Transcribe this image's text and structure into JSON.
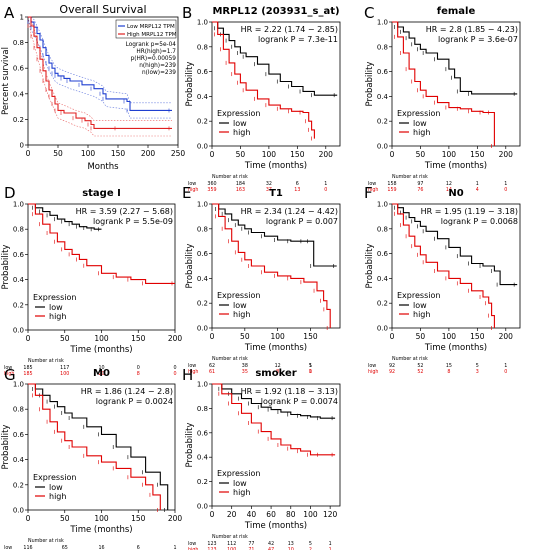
{
  "chart_data": [
    {
      "type": "line",
      "letter": "A",
      "style": "gepia",
      "title": "Overall Survival",
      "xlabel": "Months",
      "ylabel": "Percent survival",
      "xlim": [
        0,
        250
      ],
      "ylim": [
        0,
        1.0
      ],
      "xticks": [
        0,
        50,
        100,
        150,
        200,
        250
      ],
      "yticks": [
        0.0,
        0.2,
        0.4,
        0.6,
        0.8,
        1.0
      ],
      "stats": [
        "Logrank p=5e-04",
        "HR(high)=1.7",
        "p(HR)=0.00059",
        "n(high)=239",
        "n(low)=239"
      ],
      "legend": [
        "Low MRPL12 TPM",
        "High MRPL12 TPM"
      ],
      "series": [
        {
          "name": "Low MRPL12 TPM",
          "color": "#1f3fd0",
          "x": [
            0,
            5,
            10,
            15,
            20,
            25,
            30,
            35,
            40,
            45,
            50,
            60,
            70,
            90,
            110,
            125,
            130,
            165,
            170,
            240
          ],
          "y": [
            1.0,
            0.96,
            0.92,
            0.87,
            0.82,
            0.76,
            0.7,
            0.64,
            0.6,
            0.56,
            0.54,
            0.52,
            0.5,
            0.47,
            0.44,
            0.4,
            0.36,
            0.34,
            0.27,
            0.27
          ]
        },
        {
          "name": "High MRPL12 TPM",
          "color": "#e02020",
          "x": [
            0,
            5,
            10,
            15,
            20,
            25,
            30,
            35,
            40,
            45,
            50,
            60,
            80,
            95,
            105,
            110,
            150,
            240
          ],
          "y": [
            1.0,
            0.93,
            0.85,
            0.76,
            0.67,
            0.58,
            0.5,
            0.43,
            0.38,
            0.32,
            0.27,
            0.25,
            0.21,
            0.19,
            0.16,
            0.13,
            0.13,
            0.13
          ]
        }
      ]
    },
    {
      "type": "line",
      "letter": "B",
      "style": "kmplot",
      "title": "MRPL12 (203931_s_at)",
      "xlabel": "Time (months)",
      "ylabel": "Probability",
      "xlim": [
        0,
        225
      ],
      "ylim": [
        0,
        1.0
      ],
      "xticks": [
        0,
        50,
        100,
        150,
        200
      ],
      "yticks": [
        0.0,
        0.2,
        0.4,
        0.6,
        0.8,
        1.0
      ],
      "hr": "HR = 2.22 (1.74 − 2.85)",
      "logrank": "logrank P = 7.3e-11",
      "legend_title": "Expression",
      "risk_title": "Number at risk",
      "risk": [
        {
          "name": "low",
          "values": [
            "360",
            "184",
            "32",
            "6",
            "1"
          ]
        },
        {
          "name": "high",
          "values": [
            "359",
            "163",
            "37",
            "13",
            "0"
          ]
        }
      ],
      "series": [
        {
          "name": "low",
          "color": "#000000",
          "x": [
            0,
            10,
            20,
            30,
            40,
            50,
            60,
            80,
            100,
            120,
            140,
            160,
            180,
            220
          ],
          "y": [
            1.0,
            0.95,
            0.9,
            0.85,
            0.8,
            0.75,
            0.72,
            0.66,
            0.58,
            0.52,
            0.48,
            0.44,
            0.41,
            0.41
          ]
        },
        {
          "name": "high",
          "color": "#e00000",
          "x": [
            0,
            10,
            20,
            30,
            40,
            50,
            60,
            80,
            100,
            120,
            140,
            160,
            170,
            175,
            180
          ],
          "y": [
            1.0,
            0.9,
            0.78,
            0.67,
            0.58,
            0.51,
            0.45,
            0.38,
            0.33,
            0.3,
            0.28,
            0.27,
            0.2,
            0.13,
            0.06
          ]
        }
      ]
    },
    {
      "type": "line",
      "letter": "C",
      "style": "kmplot",
      "title": "female",
      "xlabel": "Time (months)",
      "ylabel": "Probability",
      "xlim": [
        0,
        225
      ],
      "ylim": [
        0,
        1.0
      ],
      "xticks": [
        0,
        50,
        100,
        150,
        200
      ],
      "yticks": [
        0.0,
        0.2,
        0.4,
        0.6,
        0.8,
        1.0
      ],
      "hr": "HR = 2.8 (1.85 − 4.23)",
      "logrank": "logrank P = 3.6e-07",
      "legend_title": "Expression",
      "risk_title": "Number at risk",
      "risk": [
        {
          "name": "low",
          "values": [
            "158",
            "97",
            "12",
            "1",
            "1"
          ]
        },
        {
          "name": "high",
          "values": [
            "159",
            "76",
            "14",
            "4",
            "0"
          ]
        }
      ],
      "series": [
        {
          "name": "low",
          "color": "#000000",
          "x": [
            0,
            10,
            20,
            30,
            40,
            50,
            60,
            80,
            100,
            110,
            120,
            140,
            220
          ],
          "y": [
            1.0,
            0.96,
            0.92,
            0.87,
            0.82,
            0.78,
            0.75,
            0.7,
            0.62,
            0.55,
            0.44,
            0.42,
            0.42
          ]
        },
        {
          "name": "high",
          "color": "#e00000",
          "x": [
            0,
            10,
            20,
            30,
            40,
            50,
            60,
            80,
            100,
            120,
            140,
            160,
            175,
            180
          ],
          "y": [
            1.0,
            0.88,
            0.75,
            0.62,
            0.52,
            0.45,
            0.4,
            0.35,
            0.31,
            0.3,
            0.28,
            0.27,
            0.27,
            0.0
          ]
        }
      ]
    },
    {
      "type": "line",
      "letter": "D",
      "style": "kmplot",
      "title": "stage I",
      "xlabel": "Time (months)",
      "ylabel": "Probability",
      "xlim": [
        0,
        200
      ],
      "ylim": [
        0,
        1.0
      ],
      "xticks": [
        0,
        50,
        100,
        150,
        200
      ],
      "yticks": [
        0.0,
        0.2,
        0.4,
        0.6,
        0.8,
        1.0
      ],
      "hr": "HR = 3.59 (2.27 − 5.68)",
      "logrank": "logrank P = 5.5e-09",
      "legend_title": "Expression",
      "risk_title": "Number at risk",
      "risk": [
        {
          "name": "low",
          "values": [
            "185",
            "117",
            "10",
            "0",
            "0"
          ]
        },
        {
          "name": "high",
          "values": [
            "185",
            "100",
            "20",
            "8",
            "0"
          ]
        }
      ],
      "series": [
        {
          "name": "low",
          "color": "#000000",
          "x": [
            0,
            10,
            20,
            30,
            40,
            50,
            60,
            70,
            80,
            90,
            100
          ],
          "y": [
            1.0,
            0.97,
            0.94,
            0.91,
            0.88,
            0.86,
            0.84,
            0.82,
            0.81,
            0.8,
            0.8
          ]
        },
        {
          "name": "high",
          "color": "#e00000",
          "x": [
            0,
            10,
            20,
            30,
            40,
            50,
            60,
            70,
            80,
            100,
            120,
            140,
            160,
            200
          ],
          "y": [
            1.0,
            0.92,
            0.84,
            0.77,
            0.7,
            0.64,
            0.6,
            0.56,
            0.51,
            0.45,
            0.42,
            0.4,
            0.37,
            0.37
          ]
        }
      ]
    },
    {
      "type": "line",
      "letter": "E",
      "style": "kmplot",
      "title": "T1",
      "xlabel": "Time (months)",
      "ylabel": "Probability",
      "xlim": [
        0,
        195
      ],
      "ylim": [
        0,
        1.0
      ],
      "xticks": [
        0,
        50,
        100,
        150
      ],
      "yticks": [
        0.0,
        0.2,
        0.4,
        0.6,
        0.8,
        1.0
      ],
      "hr": "HR = 2.34 (1.24 − 4.42)",
      "logrank": "logrank P = 0.007",
      "legend_title": "Expression",
      "risk_title": "Number at risk",
      "risk": [
        {
          "name": "low",
          "values": [
            "62",
            "38",
            "12",
            "5",
            "1"
          ]
        },
        {
          "name": "high",
          "values": [
            "61",
            "35",
            "8",
            "1",
            "0"
          ]
        }
      ],
      "series": [
        {
          "name": "low",
          "color": "#000000",
          "x": [
            0,
            10,
            20,
            30,
            40,
            50,
            60,
            80,
            100,
            120,
            140,
            150,
            155,
            190
          ],
          "y": [
            1.0,
            0.96,
            0.92,
            0.87,
            0.83,
            0.8,
            0.77,
            0.74,
            0.71,
            0.7,
            0.7,
            0.7,
            0.5,
            0.5
          ]
        },
        {
          "name": "high",
          "color": "#e00000",
          "x": [
            0,
            10,
            20,
            30,
            40,
            50,
            60,
            80,
            100,
            120,
            140,
            160,
            170,
            175,
            180
          ],
          "y": [
            1.0,
            0.9,
            0.8,
            0.7,
            0.61,
            0.55,
            0.5,
            0.45,
            0.42,
            0.4,
            0.37,
            0.3,
            0.22,
            0.15,
            0.0
          ]
        }
      ]
    },
    {
      "type": "line",
      "letter": "F",
      "style": "kmplot",
      "title": "N0",
      "xlabel": "Time (months)",
      "ylabel": "Probability",
      "xlim": [
        0,
        225
      ],
      "ylim": [
        0,
        1.0
      ],
      "xticks": [
        0,
        50,
        100,
        150,
        200
      ],
      "yticks": [
        0.0,
        0.2,
        0.4,
        0.6,
        0.8,
        1.0
      ],
      "hr": "HR = 1.95 (1.19 − 3.18)",
      "logrank": "logrank P = 0.0068",
      "legend_title": "Expression",
      "risk_title": "Number at risk",
      "risk": [
        {
          "name": "low",
          "values": [
            "92",
            "52",
            "15",
            "5",
            "1"
          ]
        },
        {
          "name": "high",
          "values": [
            "92",
            "52",
            "8",
            "3",
            "0"
          ]
        }
      ],
      "series": [
        {
          "name": "low",
          "color": "#000000",
          "x": [
            0,
            10,
            20,
            30,
            40,
            50,
            60,
            80,
            100,
            120,
            140,
            160,
            180,
            190,
            220
          ],
          "y": [
            1.0,
            0.97,
            0.93,
            0.89,
            0.86,
            0.82,
            0.78,
            0.72,
            0.65,
            0.58,
            0.52,
            0.5,
            0.46,
            0.35,
            0.35
          ]
        },
        {
          "name": "high",
          "color": "#e00000",
          "x": [
            0,
            10,
            20,
            30,
            40,
            50,
            60,
            80,
            100,
            120,
            140,
            160,
            170,
            175,
            180
          ],
          "y": [
            1.0,
            0.92,
            0.83,
            0.74,
            0.66,
            0.59,
            0.53,
            0.46,
            0.4,
            0.36,
            0.3,
            0.25,
            0.2,
            0.1,
            0.0
          ]
        }
      ]
    },
    {
      "type": "line",
      "letter": "G",
      "style": "kmplot",
      "title": "M0",
      "xlabel": "Time (months)",
      "ylabel": "Probability",
      "xlim": [
        0,
        200
      ],
      "ylim": [
        0,
        1.0
      ],
      "xticks": [
        0,
        50,
        100,
        150,
        200
      ],
      "yticks": [
        0.0,
        0.2,
        0.4,
        0.6,
        0.8,
        1.0
      ],
      "hr": "HR = 1.86 (1.24 − 2.8)",
      "logrank": "logrank P = 0.0024",
      "legend_title": "Expression",
      "risk_title": "Number at risk",
      "risk": [
        {
          "name": "low",
          "values": [
            "116",
            "65",
            "16",
            "6",
            "1"
          ]
        },
        {
          "name": "high",
          "values": [
            "113",
            "55",
            "8",
            "3",
            "0"
          ]
        }
      ],
      "series": [
        {
          "name": "low",
          "color": "#000000",
          "x": [
            0,
            10,
            20,
            30,
            40,
            50,
            60,
            80,
            100,
            120,
            140,
            160,
            180,
            190
          ],
          "y": [
            1.0,
            0.96,
            0.91,
            0.86,
            0.82,
            0.77,
            0.73,
            0.66,
            0.6,
            0.5,
            0.42,
            0.3,
            0.2,
            0.0
          ]
        },
        {
          "name": "high",
          "color": "#e00000",
          "x": [
            0,
            10,
            20,
            30,
            40,
            50,
            60,
            80,
            100,
            120,
            140,
            160,
            170,
            180
          ],
          "y": [
            1.0,
            0.91,
            0.8,
            0.7,
            0.62,
            0.55,
            0.5,
            0.43,
            0.38,
            0.33,
            0.26,
            0.2,
            0.12,
            0.0
          ]
        }
      ]
    },
    {
      "type": "line",
      "letter": "H",
      "style": "kmplot",
      "title": "smoker",
      "xlabel": "Time (months)",
      "ylabel": "Probability",
      "xlim": [
        0,
        130
      ],
      "ylim": [
        0,
        1.0
      ],
      "xticks": [
        0,
        20,
        40,
        60,
        80,
        100,
        120
      ],
      "yticks": [
        0.0,
        0.2,
        0.4,
        0.6,
        0.8,
        1.0
      ],
      "hr": "HR = 1.92 (1.18 − 3.13)",
      "logrank": "logrank P = 0.0074",
      "legend_title": "Expression",
      "risk_title": "Number at risk",
      "risk": [
        {
          "name": "low",
          "values": [
            "123",
            "112",
            "77",
            "42",
            "13",
            "5",
            "1"
          ]
        },
        {
          "name": "high",
          "values": [
            "123",
            "100",
            "71",
            "47",
            "10",
            "2",
            "1"
          ]
        }
      ],
      "series": [
        {
          "name": "low",
          "color": "#000000",
          "x": [
            0,
            10,
            20,
            30,
            40,
            50,
            60,
            70,
            80,
            90,
            100,
            110,
            125
          ],
          "y": [
            1.0,
            0.96,
            0.92,
            0.88,
            0.84,
            0.81,
            0.79,
            0.77,
            0.75,
            0.74,
            0.73,
            0.72,
            0.72
          ]
        },
        {
          "name": "high",
          "color": "#e00000",
          "x": [
            0,
            10,
            20,
            30,
            40,
            50,
            60,
            70,
            80,
            90,
            100,
            110,
            125
          ],
          "y": [
            1.0,
            0.92,
            0.84,
            0.76,
            0.68,
            0.61,
            0.55,
            0.5,
            0.47,
            0.45,
            0.42,
            0.42,
            0.42
          ]
        }
      ]
    }
  ]
}
